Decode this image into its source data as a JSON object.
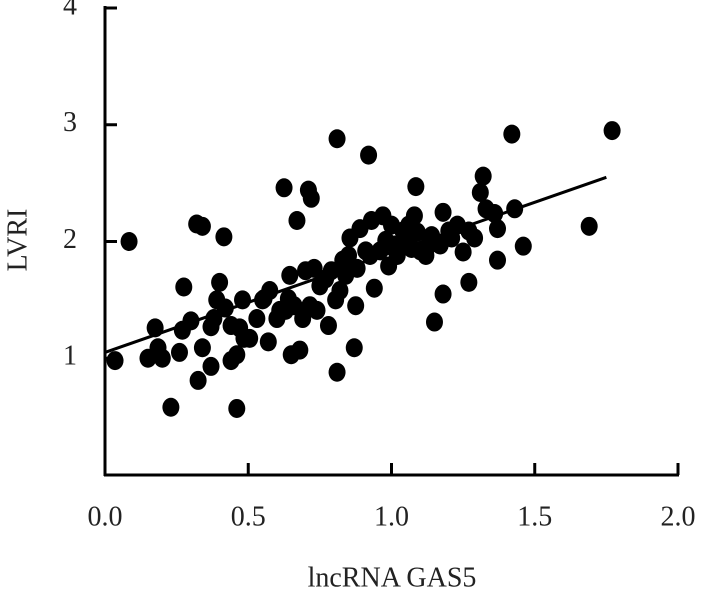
{
  "chart_data": {
    "type": "scatter",
    "x_label": "lncRNA GAS5",
    "y_label": "LVRI",
    "color": "#000000",
    "xlim": [
      0,
      2
    ],
    "ylim": [
      0,
      4
    ],
    "xticks": [
      {
        "value": 0,
        "label": "0.0"
      },
      0.5,
      {
        "value": 1,
        "label": "1.0"
      },
      1.5,
      {
        "value": 2,
        "label": "2.0"
      }
    ],
    "yticks": [
      1,
      2,
      3,
      4
    ],
    "x": [
      0.035,
      0.084,
      0.15,
      0.175,
      0.2,
      0.23,
      0.26,
      0.27,
      0.275,
      0.3,
      0.32,
      0.34,
      0.325,
      0.34,
      0.37,
      0.37,
      0.39,
      0.4,
      0.415,
      0.42,
      0.44,
      0.46,
      0.46,
      0.47,
      0.48,
      0.485,
      0.53,
      0.55,
      0.57,
      0.6,
      0.625,
      0.64,
      0.645,
      0.65,
      0.67,
      0.68,
      0.69,
      0.7,
      0.71,
      0.715,
      0.72,
      0.73,
      0.75,
      0.77,
      0.78,
      0.79,
      0.81,
      0.81,
      0.82,
      0.83,
      0.85,
      0.855,
      0.87,
      0.875,
      0.89,
      0.91,
      0.92,
      0.93,
      0.94,
      0.96,
      0.97,
      0.99,
      1.0,
      1.02,
      1.04,
      1.06,
      1.07,
      1.08,
      1.085,
      1.1,
      1.12,
      1.14,
      1.15,
      1.17,
      1.18,
      1.18,
      1.21,
      1.23,
      1.25,
      1.27,
      1.29,
      1.31,
      1.32,
      1.33,
      1.36,
      1.37,
      1.37,
      1.42,
      1.43,
      1.46,
      1.69,
      1.77,
      0.44,
      0.555,
      0.575,
      0.63,
      0.66,
      0.74,
      0.805,
      0.84,
      0.88,
      0.925,
      0.98,
      1.01,
      1.05,
      1.09,
      1.13,
      1.2,
      1.27,
      0.185,
      0.38,
      0.505,
      0.61
    ],
    "y": [
      0.98,
      2.0,
      1.0,
      1.26,
      1.0,
      0.58,
      1.05,
      1.24,
      1.61,
      1.32,
      2.15,
      2.13,
      0.81,
      1.09,
      1.27,
      0.93,
      1.5,
      1.65,
      2.04,
      1.43,
      0.98,
      1.03,
      0.57,
      1.26,
      1.5,
      1.17,
      1.34,
      1.5,
      1.14,
      1.34,
      2.46,
      1.51,
      1.71,
      1.03,
      2.18,
      1.07,
      1.34,
      1.75,
      2.44,
      1.45,
      2.37,
      1.77,
      1.62,
      1.68,
      1.28,
      1.75,
      2.88,
      0.88,
      1.58,
      1.84,
      1.88,
      2.03,
      1.09,
      1.45,
      2.11,
      1.92,
      2.74,
      2.18,
      1.6,
      1.92,
      2.22,
      1.79,
      2.14,
      1.88,
      2.09,
      2.14,
      1.94,
      2.22,
      2.47,
      1.92,
      1.88,
      2.05,
      1.31,
      1.97,
      2.25,
      1.55,
      2.03,
      2.14,
      1.91,
      1.65,
      2.03,
      2.42,
      2.56,
      2.28,
      2.24,
      1.84,
      2.11,
      2.92,
      2.28,
      1.96,
      2.13,
      2.95,
      1.28,
      1.51,
      1.58,
      1.41,
      1.45,
      1.41,
      1.5,
      1.71,
      1.77,
      1.88,
      2.01,
      1.97,
      2.01,
      2.08,
      1.97,
      2.09,
      2.09,
      1.09,
      1.34,
      1.17,
      1.41
    ],
    "trendline": {
      "x": [
        0,
        1.75
      ],
      "y": [
        1.05,
        2.55
      ]
    }
  }
}
